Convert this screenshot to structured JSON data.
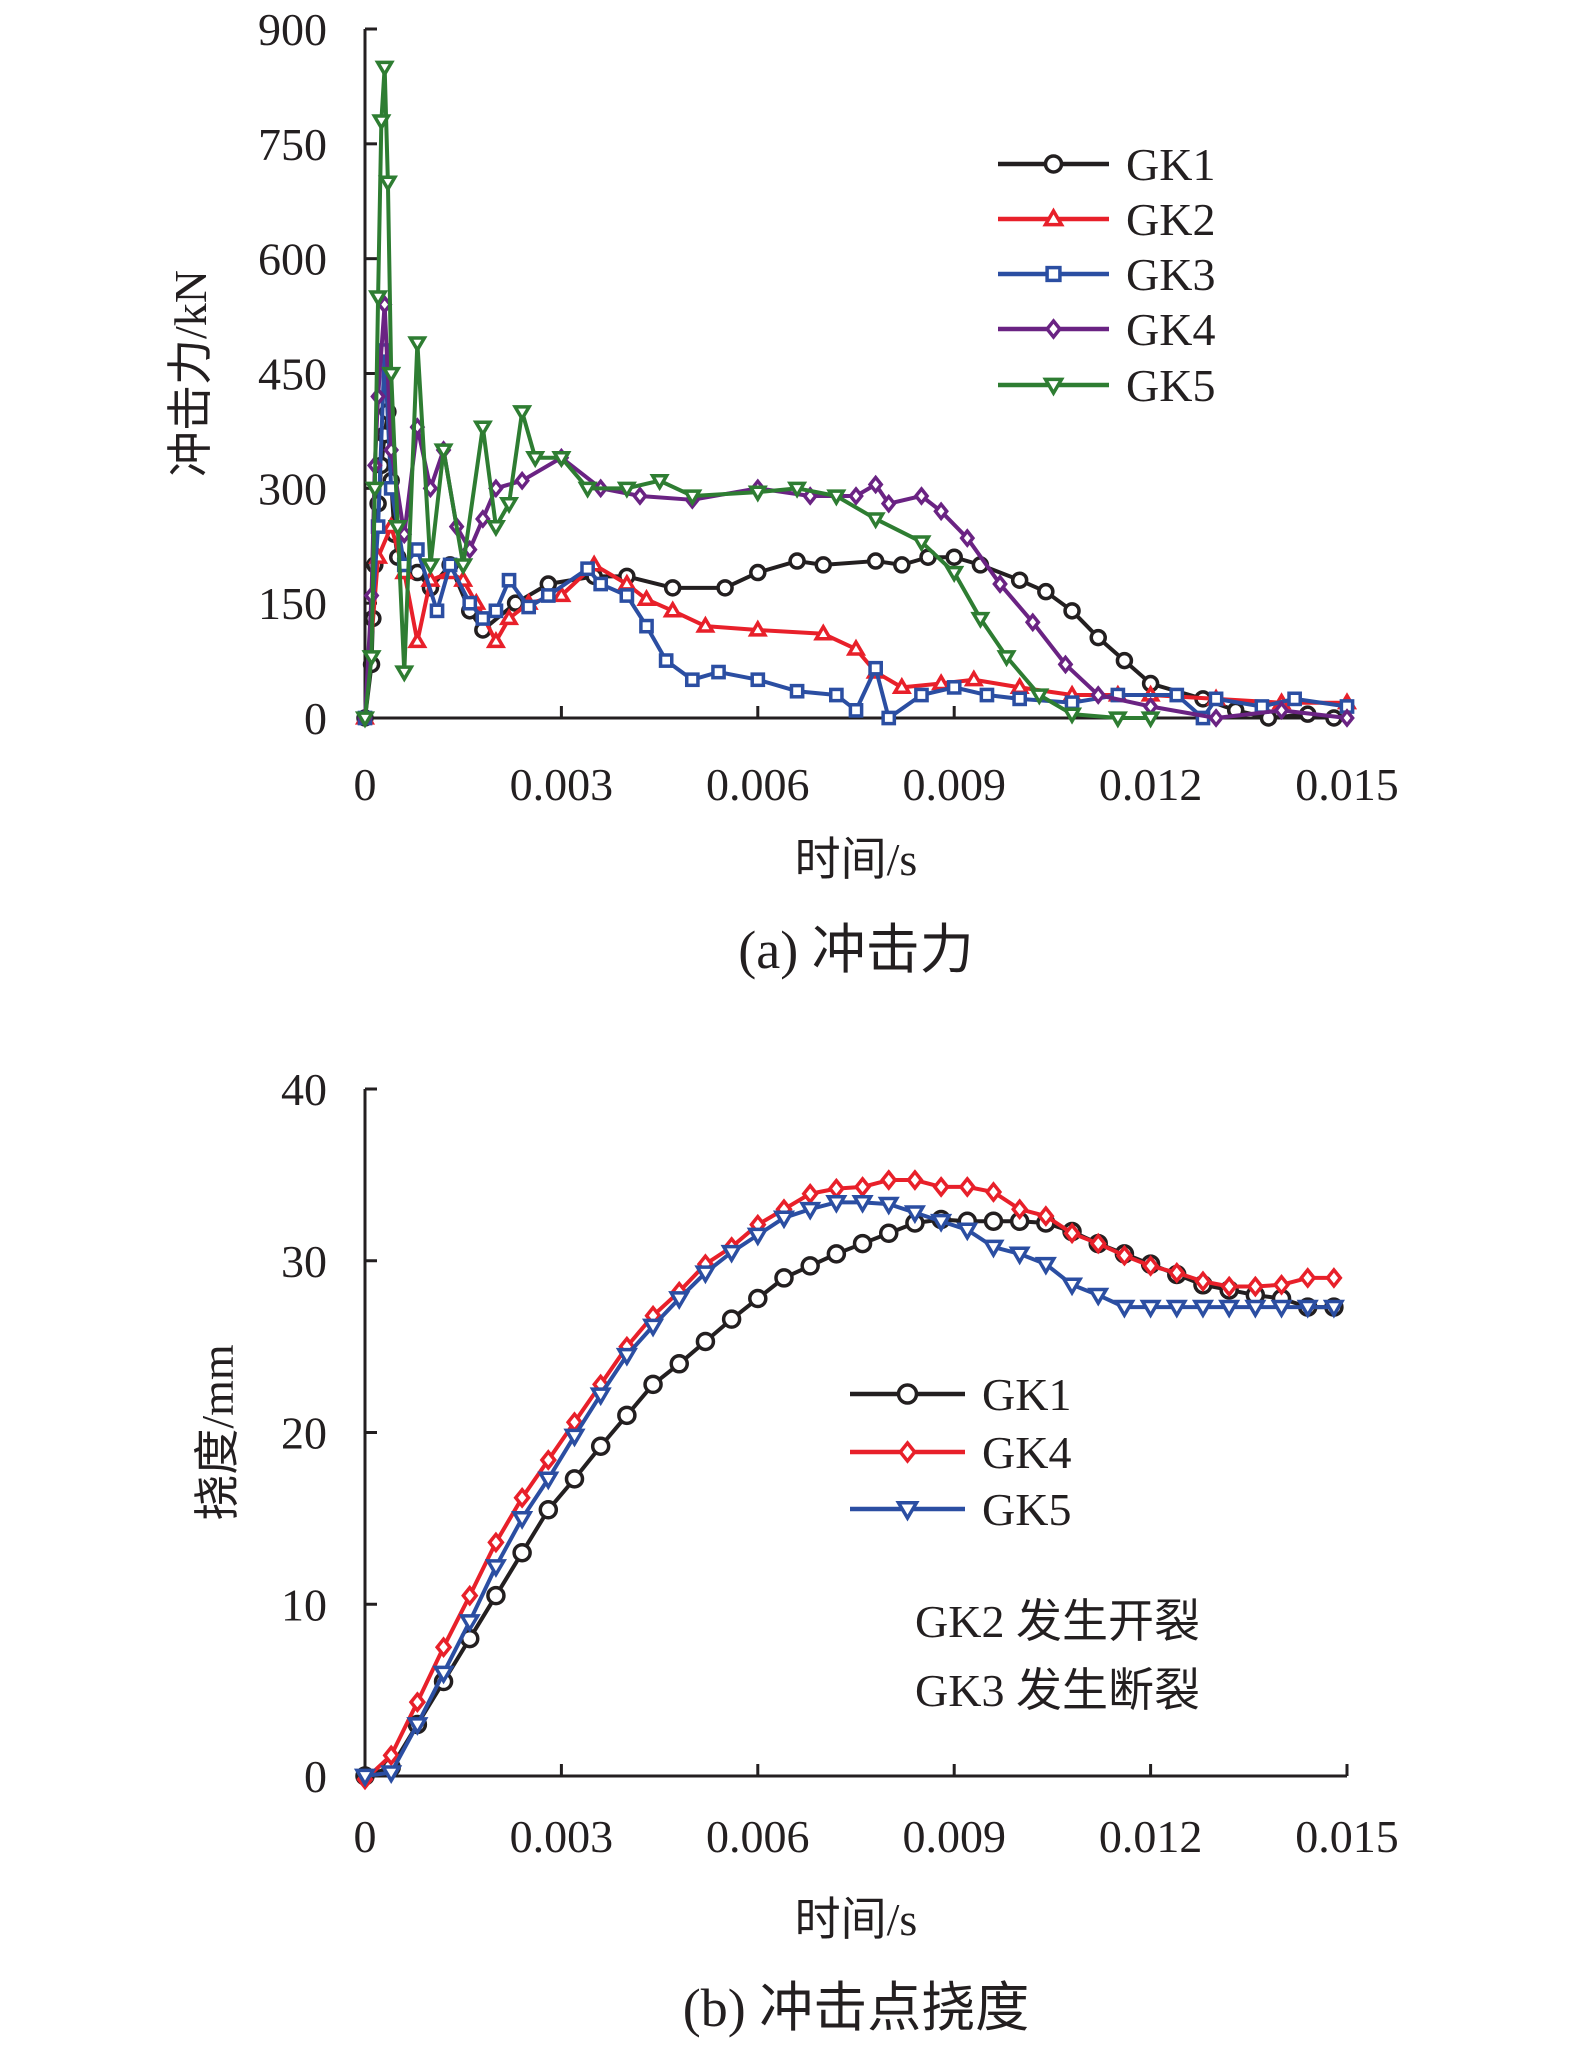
{
  "chart_data": [
    {
      "type": "line",
      "caption": "(a) 冲击力",
      "xlabel": "时间/s",
      "ylabel": "冲击力/kN",
      "xlim": [
        0,
        0.015
      ],
      "ylim": [
        0,
        900
      ],
      "xticks": [
        "0",
        "0.003",
        "0.006",
        "0.009",
        "0.012",
        "0.015"
      ],
      "yticks": [
        "0",
        "150",
        "300",
        "450",
        "600",
        "750",
        "900"
      ],
      "grid": false,
      "legend": "top-right",
      "series": [
        {
          "name": "GK1",
          "color": "#231f20",
          "marker": "circle",
          "x": [
            0,
            0.0001,
            0.00012,
            0.00015,
            0.0002,
            0.00025,
            0.0003,
            0.00035,
            0.0004,
            0.00045,
            0.0005,
            0.0008,
            0.001,
            0.0013,
            0.0016,
            0.0018,
            0.0023,
            0.0028,
            0.0035,
            0.004,
            0.0047,
            0.0055,
            0.006,
            0.0066,
            0.007,
            0.0078,
            0.0082,
            0.0086,
            0.009,
            0.0094,
            0.01,
            0.0104,
            0.0108,
            0.0112,
            0.0116,
            0.012,
            0.0128,
            0.0133,
            0.0138,
            0.0144,
            0.0148
          ],
          "y": [
            0,
            70,
            130,
            200,
            280,
            330,
            370,
            400,
            310,
            240,
            210,
            190,
            170,
            200,
            140,
            115,
            150,
            175,
            185,
            185,
            170,
            170,
            190,
            205,
            200,
            205,
            200,
            210,
            210,
            200,
            180,
            165,
            140,
            105,
            75,
            45,
            25,
            10,
            0,
            5,
            0
          ]
        },
        {
          "name": "GK2",
          "color": "#e8202a",
          "marker": "triangle-up",
          "x": [
            0,
            0.0002,
            0.0004,
            0.0006,
            0.0008,
            0.001,
            0.0013,
            0.0015,
            0.0017,
            0.002,
            0.0022,
            0.0025,
            0.003,
            0.0035,
            0.004,
            0.0043,
            0.0047,
            0.0052,
            0.006,
            0.007,
            0.0075,
            0.0078,
            0.0082,
            0.0088,
            0.0093,
            0.01,
            0.0108,
            0.0115,
            0.012,
            0.013,
            0.014,
            0.015
          ],
          "y": [
            0,
            210,
            250,
            190,
            100,
            180,
            190,
            180,
            150,
            100,
            130,
            150,
            160,
            200,
            175,
            155,
            140,
            120,
            115,
            110,
            90,
            60,
            40,
            45,
            50,
            40,
            30,
            30,
            30,
            25,
            20,
            20
          ]
        },
        {
          "name": "GK3",
          "color": "#2b4ea2",
          "marker": "square",
          "x": [
            0,
            0.0002,
            0.0003,
            0.0004,
            0.0006,
            0.0008,
            0.0011,
            0.0013,
            0.0016,
            0.0018,
            0.002,
            0.0022,
            0.0025,
            0.0028,
            0.0034,
            0.0036,
            0.004,
            0.0043,
            0.0046,
            0.005,
            0.0054,
            0.006,
            0.0066,
            0.0072,
            0.0075,
            0.0078,
            0.008,
            0.0085,
            0.009,
            0.0095,
            0.01,
            0.0108,
            0.0115,
            0.0124,
            0.0128,
            0.013,
            0.0137,
            0.0142,
            0.015
          ],
          "y": [
            0,
            250,
            480,
            300,
            200,
            220,
            140,
            200,
            150,
            130,
            140,
            180,
            145,
            160,
            195,
            175,
            160,
            120,
            75,
            50,
            60,
            50,
            35,
            30,
            10,
            65,
            0,
            30,
            40,
            30,
            25,
            20,
            30,
            30,
            0,
            25,
            15,
            25,
            15
          ]
        },
        {
          "name": "GK4",
          "color": "#6a2383",
          "marker": "diamond",
          "x": [
            0,
            0.0001,
            0.00015,
            0.0002,
            0.0003,
            0.0004,
            0.0006,
            0.0008,
            0.001,
            0.0012,
            0.0014,
            0.0016,
            0.0018,
            0.002,
            0.0024,
            0.003,
            0.0036,
            0.0042,
            0.005,
            0.006,
            0.0068,
            0.0075,
            0.0078,
            0.008,
            0.0085,
            0.0088,
            0.0092,
            0.0097,
            0.0102,
            0.0107,
            0.0112,
            0.012,
            0.013,
            0.014,
            0.015
          ],
          "y": [
            0,
            160,
            330,
            420,
            540,
            350,
            240,
            380,
            300,
            350,
            250,
            220,
            260,
            300,
            310,
            340,
            300,
            290,
            285,
            300,
            290,
            290,
            305,
            280,
            290,
            270,
            235,
            175,
            125,
            70,
            30,
            15,
            0,
            10,
            0
          ]
        },
        {
          "name": "GK5",
          "color": "#2e7d32",
          "marker": "triangle-down",
          "x": [
            0,
            0.0001,
            0.00015,
            0.0002,
            0.00025,
            0.0003,
            0.00035,
            0.0004,
            0.0005,
            0.0006,
            0.0008,
            0.001,
            0.0012,
            0.0015,
            0.0018,
            0.002,
            0.0022,
            0.0024,
            0.0026,
            0.003,
            0.0034,
            0.004,
            0.0045,
            0.005,
            0.006,
            0.0066,
            0.0072,
            0.0078,
            0.0085,
            0.009,
            0.0094,
            0.0098,
            0.0103,
            0.0108,
            0.0115,
            0.012
          ],
          "y": [
            0,
            80,
            300,
            550,
            780,
            850,
            700,
            450,
            250,
            60,
            490,
            200,
            350,
            200,
            380,
            250,
            280,
            400,
            340,
            340,
            300,
            300,
            310,
            290,
            295,
            300,
            290,
            260,
            230,
            190,
            130,
            80,
            30,
            5,
            0,
            0
          ]
        }
      ]
    },
    {
      "type": "line",
      "caption": "(b) 冲击点挠度",
      "xlabel": "时间/s",
      "ylabel": "挠度/mm",
      "xlim": [
        0,
        0.015
      ],
      "ylim": [
        0,
        40
      ],
      "xticks": [
        "0",
        "0.003",
        "0.006",
        "0.009",
        "0.012",
        "0.015"
      ],
      "yticks": [
        "0",
        "10",
        "20",
        "30",
        "40"
      ],
      "grid": false,
      "legend": "center-right",
      "annotations": [
        "GK2 发生开裂",
        "GK3 发生断裂"
      ],
      "series": [
        {
          "name": "GK1",
          "color": "#231f20",
          "marker": "circle",
          "x": [
            0,
            0.0004,
            0.0008,
            0.0012,
            0.0016,
            0.002,
            0.0024,
            0.0028,
            0.0032,
            0.0036,
            0.004,
            0.0044,
            0.0048,
            0.0052,
            0.0056,
            0.006,
            0.0064,
            0.0068,
            0.0072,
            0.0076,
            0.008,
            0.0084,
            0.0088,
            0.0092,
            0.0096,
            0.01,
            0.0104,
            0.0108,
            0.0112,
            0.0116,
            0.012,
            0.0124,
            0.0128,
            0.0132,
            0.0136,
            0.014,
            0.0144,
            0.0148
          ],
          "y": [
            0,
            0.5,
            3,
            5.5,
            8,
            10.5,
            13,
            15.5,
            17.3,
            19.2,
            21,
            22.8,
            24,
            25.3,
            26.6,
            27.8,
            29,
            29.7,
            30.4,
            31,
            31.6,
            32.2,
            32.4,
            32.3,
            32.3,
            32.3,
            32.2,
            31.7,
            31,
            30.4,
            29.8,
            29.2,
            28.6,
            28.3,
            28,
            27.8,
            27.3,
            27.3
          ]
        },
        {
          "name": "GK4",
          "color": "#e8202a",
          "marker": "diamond",
          "x": [
            0,
            0.0004,
            0.0008,
            0.0012,
            0.0016,
            0.002,
            0.0024,
            0.0028,
            0.0032,
            0.0036,
            0.004,
            0.0044,
            0.0048,
            0.0052,
            0.0056,
            0.006,
            0.0064,
            0.0068,
            0.0072,
            0.0076,
            0.008,
            0.0084,
            0.0088,
            0.0092,
            0.0096,
            0.01,
            0.0104,
            0.0108,
            0.0112,
            0.0116,
            0.012,
            0.0124,
            0.0128,
            0.0132,
            0.0136,
            0.014,
            0.0144,
            0.0148
          ],
          "y": [
            -0.2,
            1.2,
            4.3,
            7.5,
            10.5,
            13.6,
            16.2,
            18.4,
            20.6,
            22.8,
            25,
            26.8,
            28.2,
            29.8,
            30.8,
            32.1,
            33,
            33.9,
            34.2,
            34.3,
            34.7,
            34.7,
            34.3,
            34.3,
            34,
            33,
            32.6,
            31.6,
            31,
            30.3,
            29.7,
            29.3,
            28.8,
            28.5,
            28.5,
            28.6,
            29,
            29
          ]
        },
        {
          "name": "GK5",
          "color": "#2b4ea2",
          "marker": "triangle-down",
          "x": [
            0,
            0.0004,
            0.0008,
            0.0012,
            0.0016,
            0.002,
            0.0024,
            0.0028,
            0.0032,
            0.0036,
            0.004,
            0.0044,
            0.0048,
            0.0052,
            0.0056,
            0.006,
            0.0064,
            0.0068,
            0.0072,
            0.0076,
            0.008,
            0.0084,
            0.0088,
            0.0092,
            0.0096,
            0.01,
            0.0104,
            0.0108,
            0.0112,
            0.0116,
            0.012,
            0.0124,
            0.0128,
            0.0132,
            0.0136,
            0.014,
            0.0144,
            0.0148
          ],
          "y": [
            0,
            0.2,
            3,
            6,
            9,
            12.2,
            15,
            17.3,
            19.8,
            22.2,
            24.5,
            26.2,
            27.8,
            29.3,
            30.5,
            31.5,
            32.5,
            33,
            33.4,
            33.4,
            33.3,
            32.8,
            32.3,
            31.8,
            30.8,
            30.4,
            29.8,
            28.6,
            28,
            27.3,
            27.3,
            27.3,
            27.3,
            27.3,
            27.3,
            27.3,
            27.3,
            27.3
          ]
        }
      ]
    }
  ]
}
